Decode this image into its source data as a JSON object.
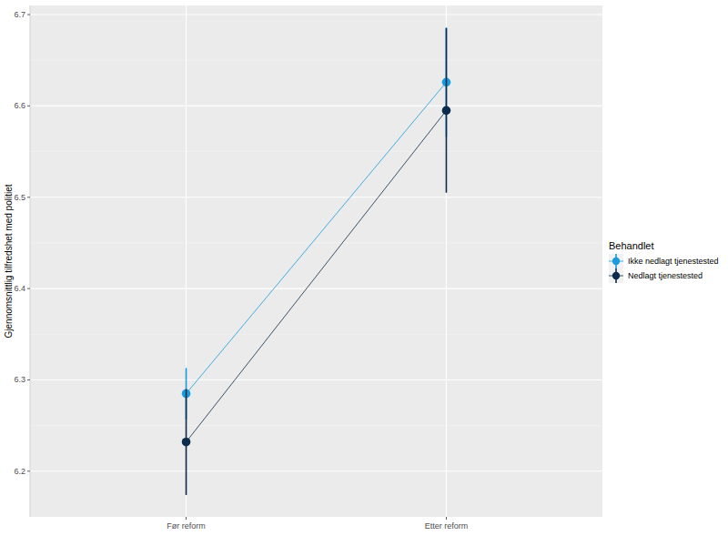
{
  "chart_data": {
    "type": "line",
    "y_label": "Gjennomsnittlig tilfredshet med politiet",
    "legend_title": "Behandlet",
    "categories": [
      "Før reform",
      "Etter reform"
    ],
    "series": [
      {
        "name": "Ikke nedlagt tjenestested",
        "color": "#1a9bdc",
        "values": [
          6.285,
          6.626
        ],
        "errors": [
          0.028,
          0.06
        ]
      },
      {
        "name": "Nedlagt tjenestested",
        "color": "#0d2b4a",
        "values": [
          6.232,
          6.595
        ],
        "errors": [
          0.058,
          0.09
        ]
      }
    ],
    "ylim": [
      6.15,
      6.71
    ],
    "yticks": [
      6.2,
      6.3,
      6.4,
      6.5,
      6.6,
      6.7
    ],
    "grid": true,
    "legend": "right",
    "marker": "circle"
  }
}
